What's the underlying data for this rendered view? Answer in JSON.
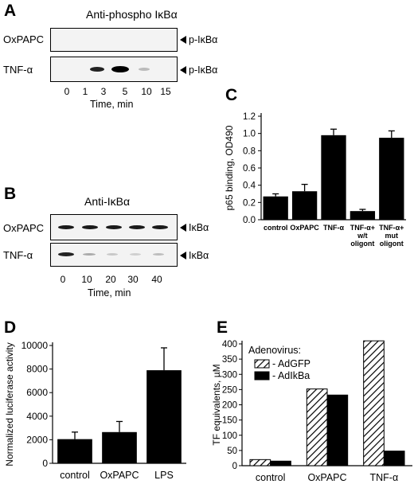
{
  "panel_a": {
    "letter": "A",
    "title": "Anti-phospho IκBα",
    "rows": [
      "OxPAPC",
      "TNF-α"
    ],
    "markers": [
      "p-IκBα",
      "p-IκBα"
    ],
    "lanes": [
      "0",
      "1",
      "3",
      "5",
      "10",
      "15"
    ],
    "xlabel": "Time, min"
  },
  "panel_b": {
    "letter": "B",
    "title": "Anti-IκBα",
    "rows": [
      "OxPAPC",
      "TNF-α"
    ],
    "markers": [
      "IκBα",
      "IκBα"
    ],
    "lanes": [
      "0",
      "10",
      "20",
      "30",
      "40"
    ],
    "xlabel": "Time, min"
  },
  "panel_c": {
    "letter": "C"
  },
  "panel_d": {
    "letter": "D"
  },
  "panel_e": {
    "letter": "E"
  },
  "chart_data": [
    {
      "panel": "C",
      "type": "bar",
      "categories": [
        "control",
        "OxPAPC",
        "TNF-α",
        "TNF-α+ w/t oligont",
        "TNF-α+ mut oligont"
      ],
      "category_lines": [
        [
          "control"
        ],
        [
          "OxPAPC"
        ],
        [
          "TNF-α"
        ],
        [
          "TNF-α+",
          "w/t",
          "oligont"
        ],
        [
          "TNF-α+",
          "mut",
          "oligont"
        ]
      ],
      "values": [
        0.27,
        0.33,
        0.98,
        0.1,
        0.95
      ],
      "errors": [
        0.03,
        0.08,
        0.07,
        0.02,
        0.08
      ],
      "ylabel": "p65 binding, OD490",
      "ylim": [
        0,
        1.2
      ],
      "yticks": [
        "0.0",
        "0.2",
        "0.4",
        "0.6",
        "0.8",
        "1.0",
        "1.2"
      ],
      "colors": {
        "bar": "#000000"
      }
    },
    {
      "panel": "D",
      "type": "bar",
      "categories": [
        "control",
        "OxPAPC",
        "LPS"
      ],
      "values": [
        2050,
        2650,
        7900
      ],
      "errors": [
        600,
        900,
        1900
      ],
      "ylabel": "Normalized luciferase activity",
      "ylim": [
        0,
        10000
      ],
      "yticks": [
        "0",
        "2000",
        "4000",
        "6000",
        "8000",
        "10000"
      ],
      "colors": {
        "bar": "#000000"
      }
    },
    {
      "panel": "E",
      "type": "bar",
      "categories": [
        "control",
        "OxPAPC",
        "TNF-α"
      ],
      "series": [
        {
          "name": "- AdGFP",
          "values": [
            20,
            252,
            410
          ],
          "pattern": "hatched"
        },
        {
          "name": "- AdIkBa",
          "values": [
            15,
            232,
            48
          ],
          "pattern": "solid"
        }
      ],
      "legend_title": "Adenovirus:",
      "legend_position": "top-left",
      "ylabel": "TF equivalents, µM",
      "ylim": [
        0,
        400
      ],
      "yticks": [
        "0",
        "50",
        "100",
        "150",
        "200",
        "250",
        "300",
        "350",
        "400"
      ],
      "colors": {
        "solid": "#000000",
        "hatch": "#000000"
      }
    }
  ]
}
